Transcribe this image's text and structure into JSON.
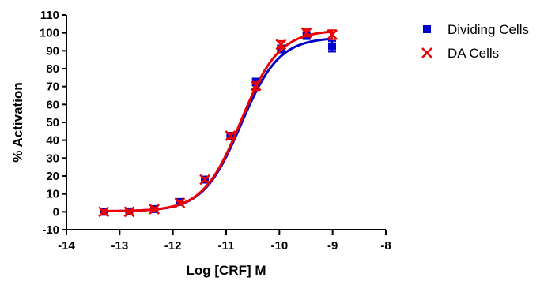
{
  "chart_data": {
    "type": "scatter",
    "title": "",
    "xlabel": "Log [CRF] M",
    "ylabel": "% Activation",
    "xlim": [
      -14,
      -8
    ],
    "ylim": [
      -10,
      110
    ],
    "x_ticks": [
      "-14",
      "-13",
      "-12",
      "-11",
      "-10",
      "-9",
      "-8"
    ],
    "y_ticks": [
      "-10",
      "0",
      "10",
      "20",
      "30",
      "40",
      "50",
      "60",
      "70",
      "80",
      "90",
      "100",
      "110"
    ],
    "grid": false,
    "legend_position": "top-right",
    "series": [
      {
        "name": "Dividing Cells",
        "marker": "square",
        "color": "#0000cc",
        "fit": {
          "bottom": 0.3,
          "top": 97.5,
          "logEC50": -10.72,
          "hill": 1.22
        },
        "points": [
          {
            "x": -13.3,
            "y": 0.0,
            "err": 1.0
          },
          {
            "x": -12.82,
            "y": 0.2,
            "err": 1.0
          },
          {
            "x": -12.35,
            "y": 1.5,
            "err": 1.0
          },
          {
            "x": -11.87,
            "y": 5.5,
            "err": 1.0
          },
          {
            "x": -11.4,
            "y": 18.0,
            "err": 1.0
          },
          {
            "x": -10.92,
            "y": 42.5,
            "err": 1.5
          },
          {
            "x": -10.44,
            "y": 72.5,
            "err": 2.0
          },
          {
            "x": -9.97,
            "y": 91.0,
            "err": 2.0
          },
          {
            "x": -9.49,
            "y": 98.5,
            "err": 2.0
          },
          {
            "x": -9.01,
            "y": 92.5,
            "err": 3.0
          }
        ]
      },
      {
        "name": "DA Cells",
        "marker": "x",
        "color": "#ee0000",
        "fit": {
          "bottom": 0.3,
          "top": 101.5,
          "logEC50": -10.72,
          "hill": 1.22
        },
        "points": [
          {
            "x": -13.3,
            "y": 0.0,
            "err": 1.0
          },
          {
            "x": -12.82,
            "y": 0.0,
            "err": 1.0
          },
          {
            "x": -12.35,
            "y": 1.5,
            "err": 1.0
          },
          {
            "x": -11.87,
            "y": 5.0,
            "err": 1.0
          },
          {
            "x": -11.4,
            "y": 18.0,
            "err": 1.0
          },
          {
            "x": -10.92,
            "y": 42.5,
            "err": 1.5
          },
          {
            "x": -10.44,
            "y": 70.5,
            "err": 2.5
          },
          {
            "x": -9.97,
            "y": 93.5,
            "err": 2.0
          },
          {
            "x": -9.49,
            "y": 100.0,
            "err": 2.0
          },
          {
            "x": -9.01,
            "y": 99.0,
            "err": 2.5
          }
        ]
      }
    ]
  }
}
